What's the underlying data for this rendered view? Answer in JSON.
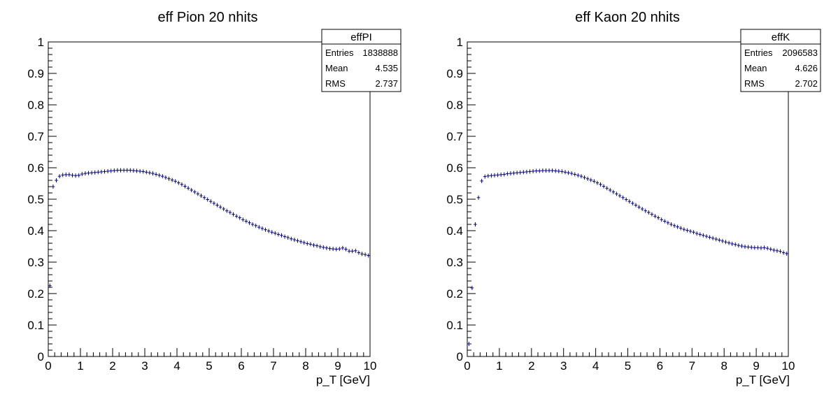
{
  "chart_data": [
    {
      "type": "scatter",
      "title": "eff Pion 20 nhits",
      "xlabel": "p_T [GeV]",
      "ylabel": "",
      "xlim": [
        0,
        10
      ],
      "ylim": [
        0,
        1
      ],
      "x_ticks": [
        "0",
        "1",
        "2",
        "3",
        "4",
        "5",
        "6",
        "7",
        "8",
        "9",
        "10"
      ],
      "y_ticks": [
        "0",
        "0.1",
        "0.2",
        "0.3",
        "0.4",
        "0.5",
        "0.6",
        "0.7",
        "0.8",
        "0.9",
        "1"
      ],
      "grid": false,
      "marker_color": "#000080",
      "stats": {
        "name": "effPI",
        "rows": [
          {
            "label": "Entries",
            "value": "1838888"
          },
          {
            "label": "Mean",
            "value": "4.535"
          },
          {
            "label": "RMS",
            "value": "2.737"
          }
        ]
      },
      "bin_width": 0.1,
      "x": [
        0.05,
        0.15,
        0.25,
        0.35,
        0.45,
        0.55,
        0.65,
        0.75,
        0.85,
        0.95,
        1.05,
        1.15,
        1.25,
        1.35,
        1.45,
        1.55,
        1.65,
        1.75,
        1.85,
        1.95,
        2.05,
        2.15,
        2.25,
        2.35,
        2.45,
        2.55,
        2.65,
        2.75,
        2.85,
        2.95,
        3.05,
        3.15,
        3.25,
        3.35,
        3.45,
        3.55,
        3.65,
        3.75,
        3.85,
        3.95,
        4.05,
        4.15,
        4.25,
        4.35,
        4.45,
        4.55,
        4.65,
        4.75,
        4.85,
        4.95,
        5.05,
        5.15,
        5.25,
        5.35,
        5.45,
        5.55,
        5.65,
        5.75,
        5.85,
        5.95,
        6.05,
        6.15,
        6.25,
        6.35,
        6.45,
        6.55,
        6.65,
        6.75,
        6.85,
        6.95,
        7.05,
        7.15,
        7.25,
        7.35,
        7.45,
        7.55,
        7.65,
        7.75,
        7.85,
        7.95,
        8.05,
        8.15,
        8.25,
        8.35,
        8.45,
        8.55,
        8.65,
        8.75,
        8.85,
        8.95,
        9.05,
        9.15,
        9.25,
        9.35,
        9.45,
        9.55,
        9.65,
        9.75,
        9.85,
        9.95
      ],
      "values": [
        0.225,
        0.54,
        0.56,
        0.573,
        0.577,
        0.578,
        0.578,
        0.576,
        0.575,
        0.576,
        0.58,
        0.582,
        0.583,
        0.584,
        0.585,
        0.586,
        0.587,
        0.588,
        0.589,
        0.59,
        0.591,
        0.592,
        0.592,
        0.592,
        0.592,
        0.592,
        0.591,
        0.59,
        0.589,
        0.588,
        0.586,
        0.584,
        0.582,
        0.579,
        0.576,
        0.573,
        0.569,
        0.565,
        0.561,
        0.557,
        0.552,
        0.547,
        0.541,
        0.535,
        0.529,
        0.523,
        0.517,
        0.511,
        0.505,
        0.499,
        0.493,
        0.487,
        0.481,
        0.475,
        0.469,
        0.463,
        0.458,
        0.452,
        0.446,
        0.441,
        0.435,
        0.43,
        0.425,
        0.42,
        0.416,
        0.411,
        0.407,
        0.403,
        0.399,
        0.395,
        0.392,
        0.388,
        0.385,
        0.381,
        0.378,
        0.374,
        0.371,
        0.368,
        0.365,
        0.362,
        0.359,
        0.357,
        0.354,
        0.352,
        0.349,
        0.347,
        0.345,
        0.343,
        0.342,
        0.341,
        0.342,
        0.345,
        0.341,
        0.335,
        0.335,
        0.336,
        0.33,
        0.326,
        0.324,
        0.321
      ]
    },
    {
      "type": "scatter",
      "title": "eff Kaon 20 nhits",
      "xlabel": "p_T [GeV]",
      "ylabel": "",
      "xlim": [
        0,
        10
      ],
      "ylim": [
        0,
        1
      ],
      "x_ticks": [
        "0",
        "1",
        "2",
        "3",
        "4",
        "5",
        "6",
        "7",
        "8",
        "9",
        "10"
      ],
      "y_ticks": [
        "0",
        "0.1",
        "0.2",
        "0.3",
        "0.4",
        "0.5",
        "0.6",
        "0.7",
        "0.8",
        "0.9",
        "1"
      ],
      "grid": false,
      "marker_color": "#000080",
      "stats": {
        "name": "effK",
        "rows": [
          {
            "label": "Entries",
            "value": "2096583"
          },
          {
            "label": "Mean",
            "value": "4.626"
          },
          {
            "label": "RMS",
            "value": "2.702"
          }
        ]
      },
      "bin_width": 0.1,
      "x": [
        0.05,
        0.15,
        0.25,
        0.35,
        0.45,
        0.55,
        0.65,
        0.75,
        0.85,
        0.95,
        1.05,
        1.15,
        1.25,
        1.35,
        1.45,
        1.55,
        1.65,
        1.75,
        1.85,
        1.95,
        2.05,
        2.15,
        2.25,
        2.35,
        2.45,
        2.55,
        2.65,
        2.75,
        2.85,
        2.95,
        3.05,
        3.15,
        3.25,
        3.35,
        3.45,
        3.55,
        3.65,
        3.75,
        3.85,
        3.95,
        4.05,
        4.15,
        4.25,
        4.35,
        4.45,
        4.55,
        4.65,
        4.75,
        4.85,
        4.95,
        5.05,
        5.15,
        5.25,
        5.35,
        5.45,
        5.55,
        5.65,
        5.75,
        5.85,
        5.95,
        6.05,
        6.15,
        6.25,
        6.35,
        6.45,
        6.55,
        6.65,
        6.75,
        6.85,
        6.95,
        7.05,
        7.15,
        7.25,
        7.35,
        7.45,
        7.55,
        7.65,
        7.75,
        7.85,
        7.95,
        8.05,
        8.15,
        8.25,
        8.35,
        8.45,
        8.55,
        8.65,
        8.75,
        8.85,
        8.95,
        9.05,
        9.15,
        9.25,
        9.35,
        9.45,
        9.55,
        9.65,
        9.75,
        9.85,
        9.95
      ],
      "values": [
        0.04,
        0.218,
        0.42,
        0.505,
        0.558,
        0.572,
        0.574,
        0.575,
        0.576,
        0.577,
        0.578,
        0.579,
        0.581,
        0.582,
        0.583,
        0.584,
        0.585,
        0.586,
        0.587,
        0.588,
        0.589,
        0.59,
        0.59,
        0.591,
        0.591,
        0.591,
        0.591,
        0.59,
        0.589,
        0.588,
        0.586,
        0.584,
        0.582,
        0.579,
        0.576,
        0.573,
        0.569,
        0.565,
        0.561,
        0.557,
        0.552,
        0.547,
        0.541,
        0.535,
        0.529,
        0.523,
        0.517,
        0.511,
        0.505,
        0.499,
        0.493,
        0.487,
        0.481,
        0.475,
        0.469,
        0.463,
        0.458,
        0.452,
        0.446,
        0.441,
        0.435,
        0.43,
        0.425,
        0.42,
        0.416,
        0.412,
        0.408,
        0.404,
        0.401,
        0.398,
        0.395,
        0.391,
        0.388,
        0.385,
        0.382,
        0.379,
        0.376,
        0.373,
        0.37,
        0.367,
        0.364,
        0.361,
        0.358,
        0.356,
        0.353,
        0.351,
        0.349,
        0.348,
        0.347,
        0.346,
        0.346,
        0.345,
        0.346,
        0.344,
        0.341,
        0.338,
        0.336,
        0.334,
        0.33,
        0.327
      ]
    }
  ]
}
